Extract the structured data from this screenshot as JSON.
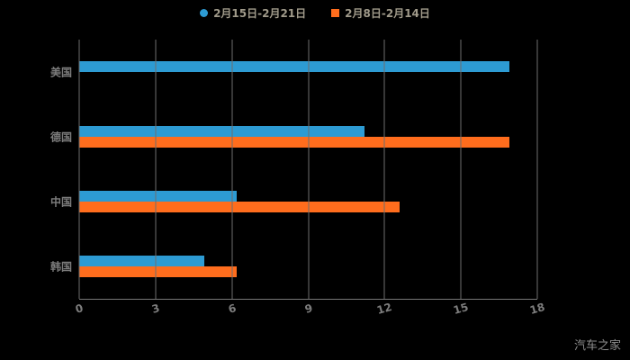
{
  "chart_data": {
    "type": "bar",
    "orientation": "horizontal",
    "title": "",
    "xlabel": "",
    "ylabel": "",
    "categories": [
      "美国",
      "德国",
      "中国",
      "韩国"
    ],
    "series": [
      {
        "name": "2月15日-2月21日",
        "color": "#2d9bd3",
        "marker": "circle",
        "values": [
          16.9,
          11.2,
          6.2,
          4.9
        ]
      },
      {
        "name": "2月8日-2月14日",
        "color": "#ff6d1d",
        "marker": "square",
        "values": [
          0,
          16.9,
          12.6,
          6.2
        ]
      }
    ],
    "x_ticks": [
      "0",
      "3",
      "6",
      "9",
      "12",
      "15",
      "18"
    ],
    "xlim": [
      0,
      18
    ],
    "grid": true,
    "legend_position": "top",
    "background": "#000000"
  },
  "watermark": "汽车之家",
  "colors": {
    "grid": "#6e6e6e",
    "axis_label": "#7d7d7d",
    "legend_text": "#a09a8a",
    "background": "#000000"
  }
}
